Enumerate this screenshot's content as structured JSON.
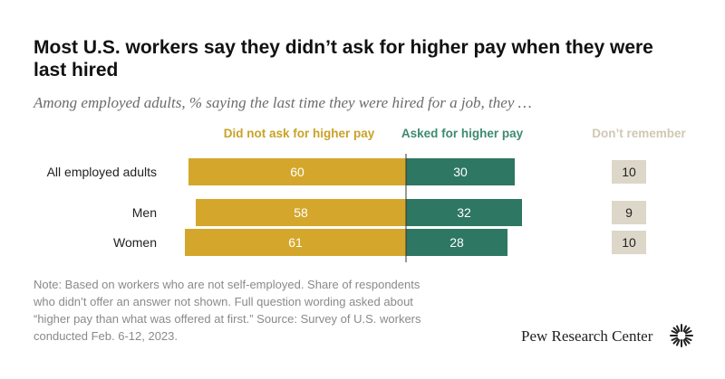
{
  "title": "Most U.S. workers say they didn’t ask for higher pay when they were last hired",
  "subtitle": "Among employed adults, % saying the last time they were hired for a job, they …",
  "headers": {
    "did_not_ask": "Did not ask for higher pay",
    "asked": "Asked for higher pay",
    "dont_remember": "Don’t remember"
  },
  "colors": {
    "did_not_ask": "#d4a72c",
    "asked": "#2e7762",
    "dont_remember": "#dcd7c8"
  },
  "chart_data": {
    "type": "bar",
    "title": "Most U.S. workers say they didn’t ask for higher pay when they were last hired",
    "subtitle": "Among employed adults, % saying the last time they were hired for a job, they …",
    "categories": [
      "All employed adults",
      "Men",
      "Women"
    ],
    "series": [
      {
        "name": "Did not ask for higher pay",
        "values": [
          60,
          58,
          61
        ]
      },
      {
        "name": "Asked for higher pay",
        "values": [
          30,
          32,
          28
        ]
      },
      {
        "name": "Don’t remember",
        "values": [
          10,
          9,
          10
        ]
      }
    ],
    "xlabel": "",
    "ylabel": "",
    "units": "%"
  },
  "note": "Note: Based on workers who are not self-employed. Share of respondents who didn’t offer an answer not shown. Full question wording asked about “higher pay than what was offered at first.” Source: Survey of U.S. workers conducted Feb. 6-12, 2023.",
  "brand": "Pew Research Center",
  "logo_icon": "pew-sunburst-icon"
}
